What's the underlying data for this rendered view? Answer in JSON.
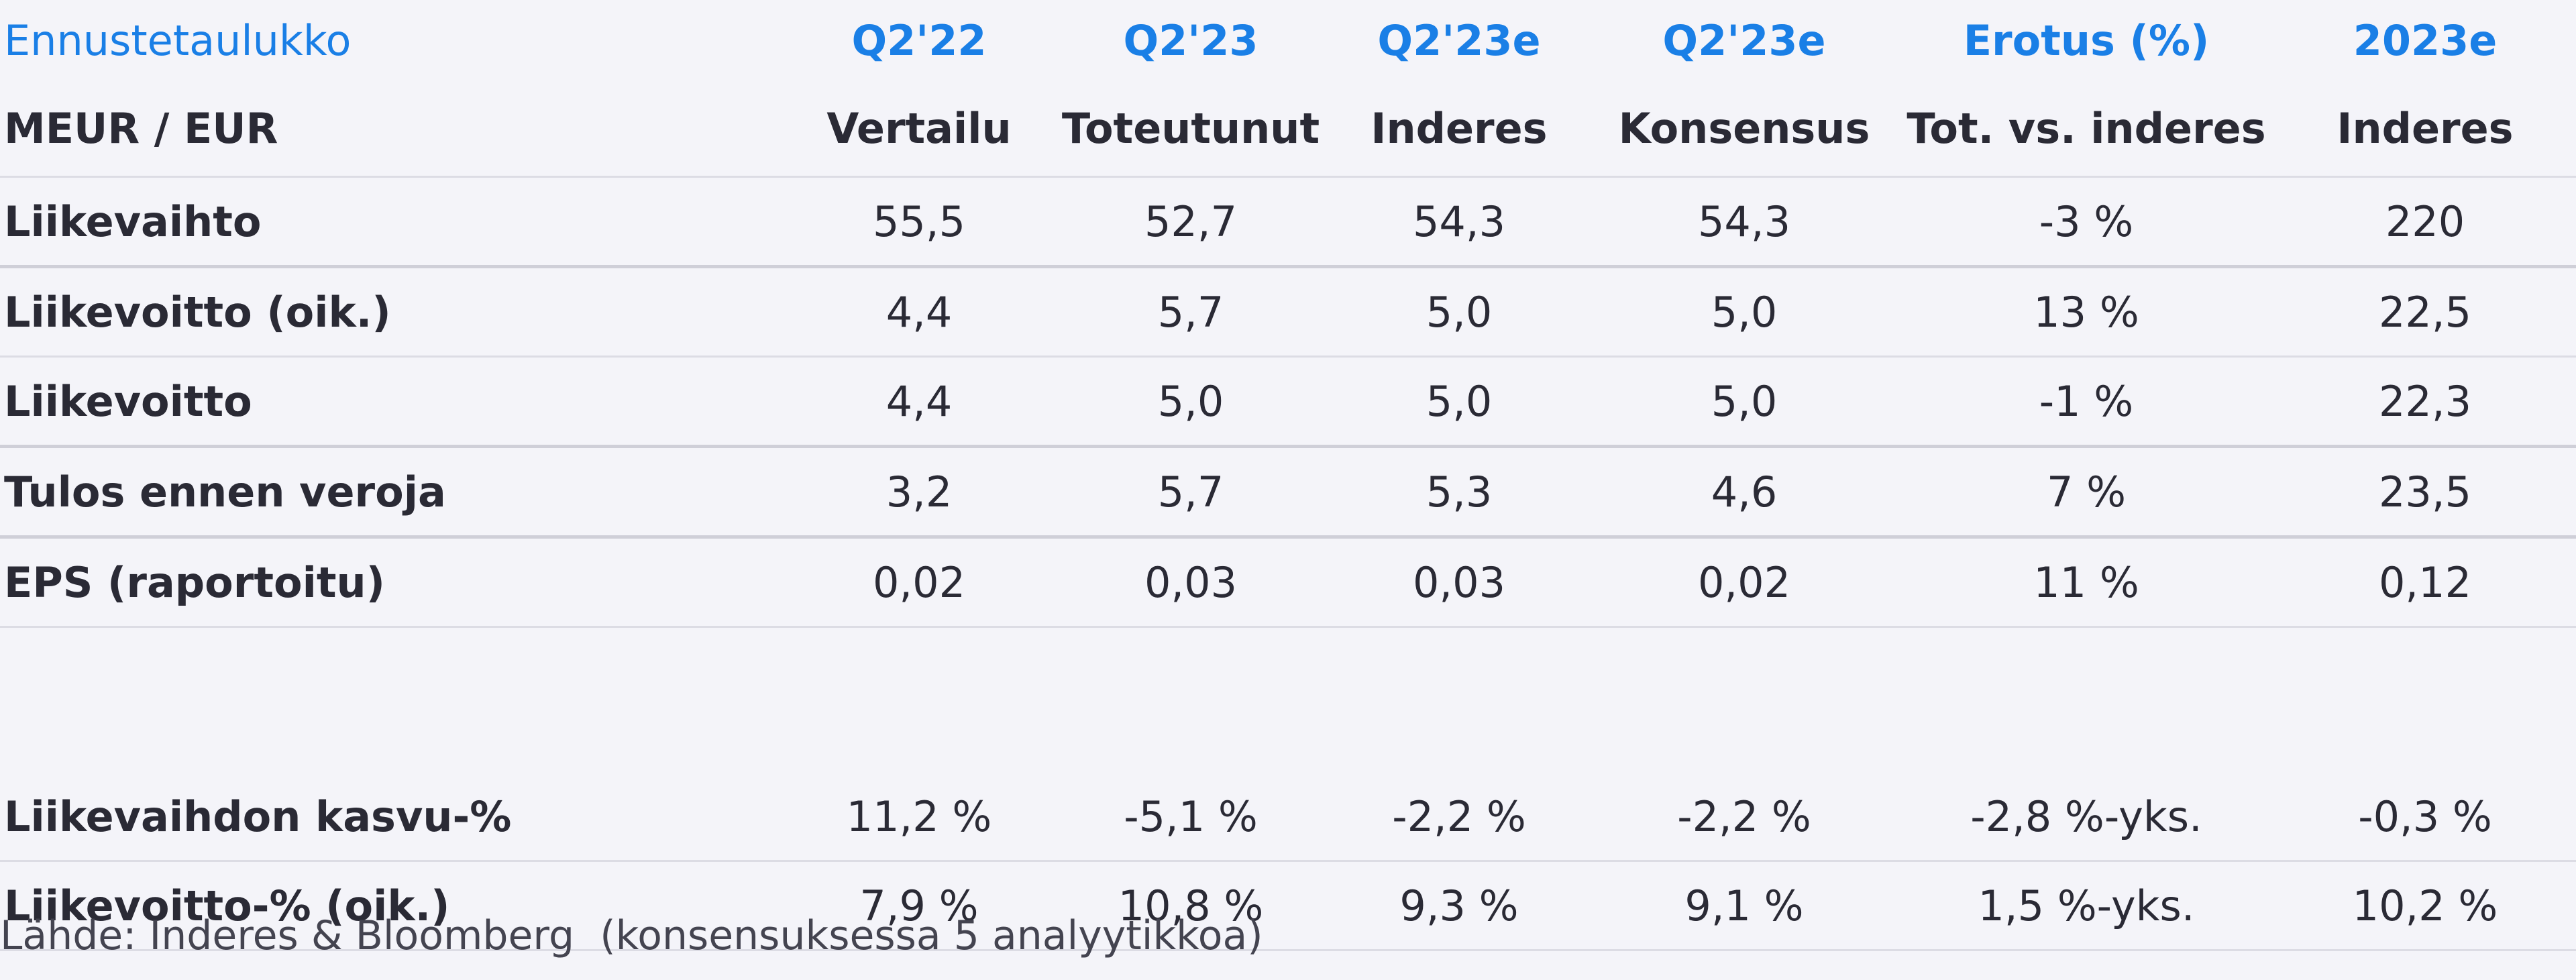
{
  "table": {
    "header_row_1": [
      "Ennustetaulukko",
      "Q2'22",
      "Q2'23",
      "Q2'23e",
      "Q2'23e",
      "Erotus (%)",
      "2023e"
    ],
    "header_row_2": [
      "MEUR / EUR",
      "Vertailu",
      "Toteutunut",
      "Inderes",
      "Konsensus",
      "Tot. vs. inderes",
      "Inderes"
    ],
    "rows": [
      [
        "Liikevaihto",
        "55,5",
        "52,7",
        "54,3",
        "54,3",
        "-3 %",
        "220"
      ],
      [
        "Liikevoitto (oik.)",
        "4,4",
        "5,7",
        "5,0",
        "5,0",
        "13 %",
        "22,5"
      ],
      [
        "Liikevoitto",
        "4,4",
        "5,0",
        "5,0",
        "5,0",
        "-1 %",
        "22,3"
      ],
      [
        "Tulos ennen veroja",
        "3,2",
        "5,7",
        "5,3",
        "4,6",
        "7 %",
        "23,5"
      ],
      [
        "EPS (raportoitu)",
        "0,02",
        "0,03",
        "0,03",
        "0,02",
        "11 %",
        "0,12"
      ]
    ],
    "ratio_rows": [
      [
        "Liikevaihdon kasvu-%",
        "11,2 %",
        "-5,1 %",
        "-2,2 %",
        "-2,2 %",
        "-2,8 %-yks.",
        "-0,3 %"
      ],
      [
        "Liikevoitto-% (oik.)",
        "7,9 %",
        "10,8 %",
        "9,3 %",
        "9,1 %",
        "1,5 %-yks.",
        "10,2 %"
      ]
    ]
  },
  "footer": {
    "source": "Lähde: Inderes & Bloomberg  (konsensuksessa 5 analyytikkoa)"
  },
  "colors": {
    "accent": "#1a7fe6",
    "background": "#f4f4f9",
    "text": "#2a2a35"
  }
}
